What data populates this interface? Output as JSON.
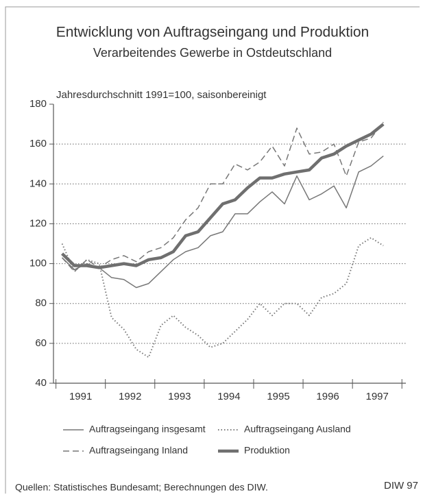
{
  "chart_data": {
    "type": "line",
    "title": "Entwicklung von Auftragseingang und Produktion",
    "subtitle": "Verarbeitendes Gewerbe in Ostdeutschland",
    "ylabel": "Jahresdurchschnitt 1991=100, saisonbereinigt",
    "source": "Quellen: Statistisches Bundesamt; Berechnungen des DIW.",
    "credit": "DIW 97",
    "x": [
      1991.125,
      1991.375,
      1991.625,
      1991.875,
      1992.125,
      1992.375,
      1992.625,
      1992.875,
      1993.125,
      1993.375,
      1993.625,
      1993.875,
      1994.125,
      1994.375,
      1994.625,
      1994.875,
      1995.125,
      1995.375,
      1995.625,
      1995.875,
      1996.125,
      1996.375,
      1996.625,
      1996.875,
      1997.125,
      1997.375,
      1997.625
    ],
    "xlim": [
      1990.95,
      1998.08
    ],
    "xticks": [
      {
        "value": 1991.5,
        "label": "1991"
      },
      {
        "value": 1992.5,
        "label": "1992"
      },
      {
        "value": 1993.5,
        "label": "1993"
      },
      {
        "value": 1994.5,
        "label": "1994"
      },
      {
        "value": 1995.5,
        "label": "1995"
      },
      {
        "value": 1996.5,
        "label": "1996"
      },
      {
        "value": 1997.5,
        "label": "1997"
      }
    ],
    "year_ticks": [
      1991,
      1992,
      1993,
      1994,
      1995,
      1996,
      1997,
      1998
    ],
    "ylim": [
      40,
      180
    ],
    "yticks": [
      40,
      60,
      80,
      100,
      120,
      140,
      160,
      180
    ],
    "grid": true,
    "series": [
      {
        "name": "Auftragseingang insgesamt",
        "color": "#777777",
        "style": "solid",
        "width": 1.5,
        "values": [
          103,
          97,
          100,
          98,
          93,
          92,
          88,
          90,
          96,
          102,
          106,
          108,
          114,
          116,
          125,
          125,
          131,
          136,
          130,
          144,
          132,
          135,
          139,
          128,
          146,
          149,
          154
        ]
      },
      {
        "name": "Auftragseingang Ausland",
        "color": "#777777",
        "style": "dotted",
        "width": 2,
        "values": [
          110,
          96,
          102,
          100,
          73,
          67,
          57,
          53,
          69,
          74,
          68,
          64,
          58,
          60,
          66,
          72,
          80,
          74,
          80,
          80,
          74,
          83,
          85,
          90,
          109,
          113,
          109
        ]
      },
      {
        "name": "Auftragseingang Inland",
        "color": "#777777",
        "style": "dashed",
        "width": 1.5,
        "values": [
          103,
          96,
          102,
          98,
          102,
          104,
          101,
          106,
          108,
          113,
          122,
          128,
          140,
          140,
          150,
          147,
          151,
          159,
          149,
          168,
          155,
          156,
          160,
          144,
          161,
          163,
          171
        ]
      },
      {
        "name": "Produktion",
        "color": "#6f6f6f",
        "style": "solid",
        "width": 4.5,
        "values": [
          105,
          99,
          99,
          98,
          99,
          100,
          99,
          102,
          103,
          106,
          114,
          116,
          123,
          130,
          132,
          138,
          143,
          143,
          145,
          146,
          147,
          153,
          155,
          159,
          162,
          165,
          170
        ]
      }
    ]
  }
}
